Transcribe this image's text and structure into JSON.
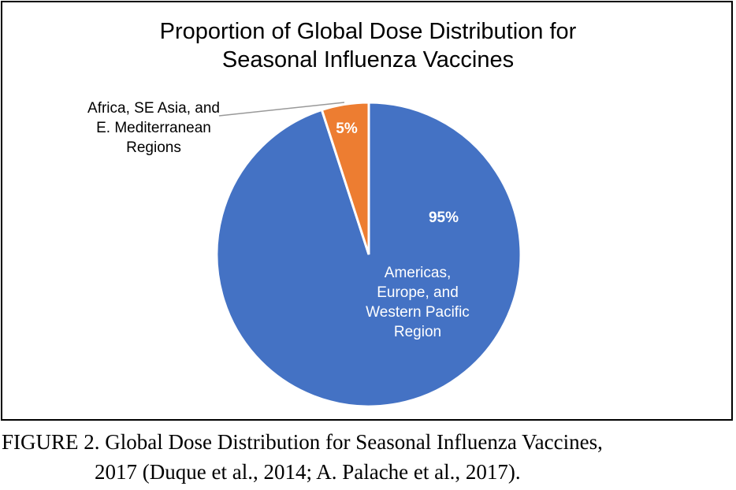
{
  "chart_data": {
    "type": "pie",
    "title": "Proportion of Global Dose Distribution for Seasonal Influenza Vaccines",
    "categories": [
      "Americas, Europe, and Western Pacific Region",
      "Africa, SE Asia, and E. Mediterranean Regions"
    ],
    "values": [
      95,
      5
    ],
    "value_labels": [
      "95%",
      "5%"
    ],
    "colors": [
      "#4472c4",
      "#ed7d31"
    ]
  },
  "caption": [
    "FIGURE 2.  Global Dose Distribution for Seasonal Influenza Vaccines,",
    "2017 (Duque et al., 2014; A. Palache et al., 2017)."
  ]
}
